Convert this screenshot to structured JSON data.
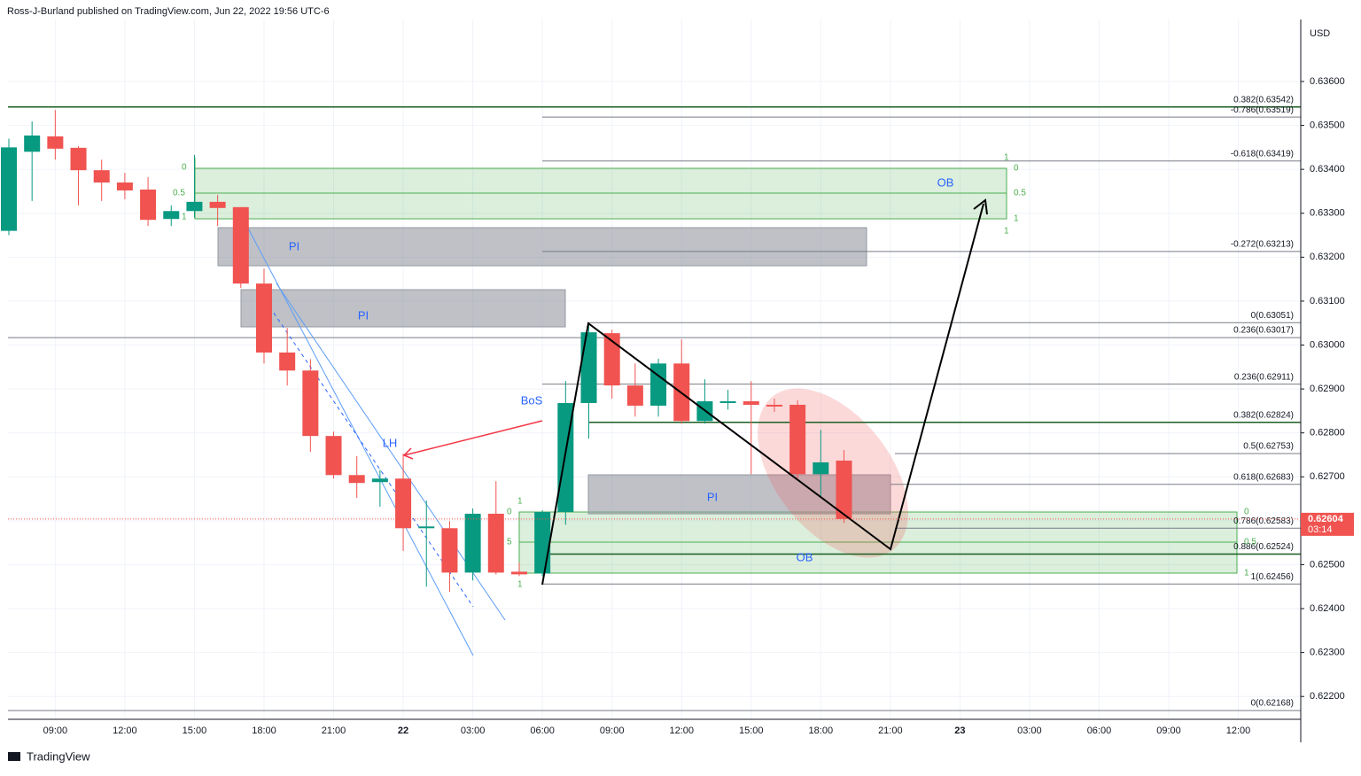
{
  "header": {
    "publisher": "Ross-J-Burland published on TradingView.com, Jun 22, 2022 19:56 UTC-6",
    "currency": "USD",
    "logo": "TradingView"
  },
  "annotations": {
    "bos": "BoS",
    "lh": "LH",
    "pi": "PI",
    "ob": "OB",
    "zero": "0",
    "half": "0.5",
    "one": "1",
    "five": "5"
  },
  "chart_data": {
    "type": "candlestick",
    "up_color": "#089981",
    "down_color": "#f05350",
    "open": [
      0.6326,
      0.6344,
      0.63475,
      0.63449,
      0.63398,
      0.6337,
      0.63354,
      0.63287,
      0.63305,
      0.63326,
      0.63314,
      0.6314,
      0.62983,
      0.62942,
      0.62793,
      0.62704,
      0.62688,
      0.62696,
      0.62583,
      0.62583,
      0.62482,
      0.62616,
      0.62484,
      0.6248,
      0.6262,
      0.62868,
      0.63027,
      0.62908,
      0.62862,
      0.62958,
      0.62827,
      0.62868,
      0.62872,
      0.62864,
      0.62864,
      0.62706,
      0.62737
    ],
    "high": [
      0.6347,
      0.63509,
      0.63535,
      0.63453,
      0.63422,
      0.63392,
      0.63382,
      0.63318,
      0.63433,
      0.63342,
      0.63314,
      0.63174,
      0.63039,
      0.62968,
      0.62803,
      0.62747,
      0.62716,
      0.62753,
      0.62646,
      0.62599,
      0.62628,
      0.6269,
      0.62505,
      0.62624,
      0.62918,
      0.63049,
      0.63035,
      0.62958,
      0.62969,
      0.63013,
      0.62922,
      0.62898,
      0.62918,
      0.62878,
      0.62874,
      0.62807,
      0.62761
    ],
    "low": [
      0.6325,
      0.63328,
      0.63422,
      0.63318,
      0.63328,
      0.63332,
      0.63271,
      0.63271,
      0.6329,
      0.63271,
      0.6313,
      0.62958,
      0.62908,
      0.62757,
      0.62696,
      0.62652,
      0.62632,
      0.62531,
      0.6245,
      0.62438,
      0.62464,
      0.62478,
      0.62474,
      0.62474,
      0.62591,
      0.62787,
      0.62878,
      0.62837,
      0.62837,
      0.62821,
      0.62821,
      0.62853,
      0.62706,
      0.62848,
      0.62696,
      0.62652,
      0.62595
    ],
    "close": [
      0.6345,
      0.63477,
      0.63447,
      0.63398,
      0.6337,
      0.63352,
      0.63285,
      0.63305,
      0.63326,
      0.63312,
      0.6314,
      0.62983,
      0.62942,
      0.62793,
      0.62704,
      0.62686,
      0.62696,
      0.62583,
      0.62587,
      0.62482,
      0.62616,
      0.62482,
      0.62478,
      0.6262,
      0.62868,
      0.63029,
      0.62908,
      0.62862,
      0.62958,
      0.62827,
      0.62872,
      0.62872,
      0.62864,
      0.6286,
      0.62706,
      0.62733,
      0.62604
    ],
    "x_labels": [
      "09:00",
      "12:00",
      "15:00",
      "18:00",
      "21:00",
      "22",
      "03:00",
      "06:00",
      "09:00",
      "12:00",
      "15:00",
      "18:00",
      "21:00",
      "23",
      "03:00",
      "06:00",
      "09:00",
      "12:00"
    ],
    "ylim": [
      0.62148,
      0.63725
    ],
    "yticks": [
      {
        "value": 0.636,
        "label": "0.63600"
      },
      {
        "value": 0.635,
        "label": "0.63500"
      },
      {
        "value": 0.634,
        "label": "0.63400"
      },
      {
        "value": 0.633,
        "label": "0.63300"
      },
      {
        "value": 0.632,
        "label": "0.63200"
      },
      {
        "value": 0.631,
        "label": "0.63100"
      },
      {
        "value": 0.63,
        "label": "0.63000"
      },
      {
        "value": 0.629,
        "label": "0.62900"
      },
      {
        "value": 0.628,
        "label": "0.62800"
      },
      {
        "value": 0.627,
        "label": "0.62700"
      },
      {
        "value": 0.626,
        "label": "0.62600"
      },
      {
        "value": 0.625,
        "label": "0.62500"
      },
      {
        "value": 0.624,
        "label": "0.62400"
      },
      {
        "value": 0.623,
        "label": "0.62300"
      },
      {
        "value": 0.622,
        "label": "0.62200"
      }
    ],
    "grid": true,
    "last_price": 0.62604,
    "countdown": "03:14",
    "last_color": "#f05350",
    "levels": [
      {
        "label": "0.382(0.63542)",
        "price": 0.63542,
        "color": "#1b5e20"
      },
      {
        "label": "-0.786(0.63519)",
        "price": 0.63519,
        "color": "#787b86"
      },
      {
        "label": "-0.618(0.63419)",
        "price": 0.63419,
        "color": "#787b86"
      },
      {
        "label": "-0.272(0.63213)",
        "price": 0.63213,
        "color": "#787b86"
      },
      {
        "label": "0(0.63051)",
        "price": 0.63051,
        "color": "#787b86"
      },
      {
        "label": "0.236(0.63017)",
        "price": 0.63017,
        "color": "#787b86"
      },
      {
        "label": "0.236(0.62911)",
        "price": 0.62911,
        "color": "#787b86"
      },
      {
        "label": "0.382(0.62824)",
        "price": 0.62824,
        "color": "#1b5e20"
      },
      {
        "label": "0.5(0.62753)",
        "price": 0.62753,
        "color": "#787b86"
      },
      {
        "label": "0.618(0.62683)",
        "price": 0.62683,
        "color": "#787b86"
      },
      {
        "label": "0.786(0.62583)",
        "price": 0.62583,
        "color": "#787b86"
      },
      {
        "label": "0.886(0.62524)",
        "price": 0.62524,
        "color": "#1b5e20"
      },
      {
        "label": "1(0.62456)",
        "price": 0.62456,
        "color": "#787b86"
      },
      {
        "label": "0(0.62168)",
        "price": 0.62168,
        "color": "#787b86"
      }
    ]
  }
}
